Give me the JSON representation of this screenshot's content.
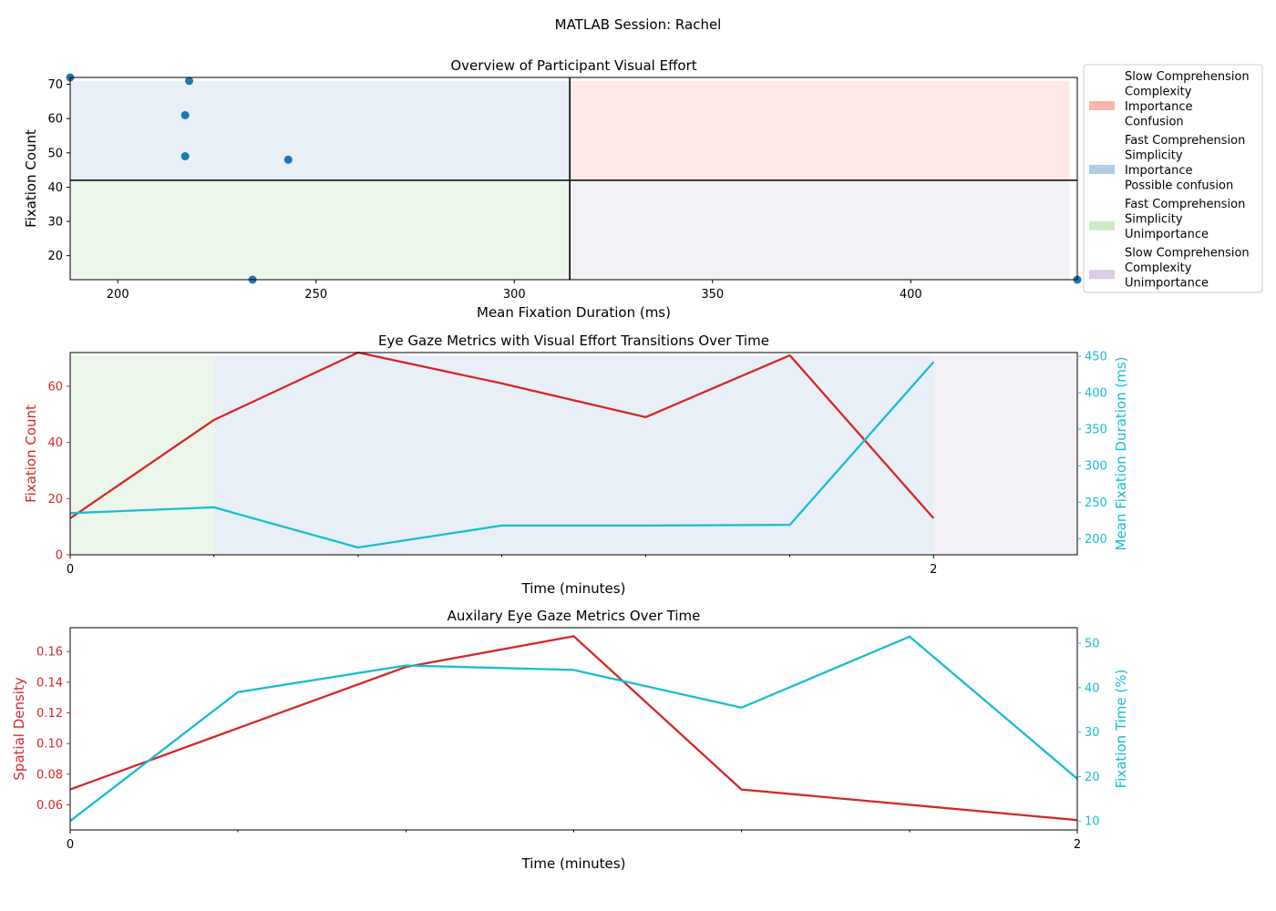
{
  "figure_title": "MATLAB Session: Rachel",
  "colors": {
    "scatter": "#1f77b4",
    "red": "#d62728",
    "cyan": "#17becf",
    "q_slow_complex_confusion": "#fde8e6",
    "q_fast_simple_confusion": "#e8eff7",
    "q_fast_simple_unimportance": "#edf6eb",
    "q_slow_complex_unimportance": "#f3f0f6",
    "legend_slow_complex_confusion": "#f9b6ac",
    "legend_fast_simple_confusion": "#b3cde3",
    "legend_fast_simple_unimportance": "#ccebc5",
    "legend_slow_complex_unimportance": "#decbe4"
  },
  "chart_data": [
    {
      "type": "scatter",
      "title": "Overview of Participant Visual Effort",
      "xlabel": "Mean Fixation Duration (ms)",
      "ylabel": "Fixation Count",
      "xlim": [
        188,
        442
      ],
      "ylim": [
        13,
        72
      ],
      "xticks": [
        200,
        250,
        300,
        350,
        400
      ],
      "yticks": [
        20,
        30,
        40,
        50,
        60,
        70
      ],
      "divider_x": 314,
      "divider_y": 42,
      "quadrants": [
        {
          "key": "q_fast_simple_confusion",
          "x": [
            188,
            314
          ],
          "y": [
            42,
            71
          ]
        },
        {
          "key": "q_slow_complex_confusion",
          "x": [
            314,
            440
          ],
          "y": [
            42,
            71
          ]
        },
        {
          "key": "q_fast_simple_unimportance",
          "x": [
            188,
            314
          ],
          "y": [
            13,
            42
          ]
        },
        {
          "key": "q_slow_complex_unimportance",
          "x": [
            314,
            440
          ],
          "y": [
            13,
            42
          ]
        }
      ],
      "points": [
        {
          "x": 188,
          "y": 72
        },
        {
          "x": 218,
          "y": 71
        },
        {
          "x": 217,
          "y": 61
        },
        {
          "x": 217,
          "y": 49
        },
        {
          "x": 243,
          "y": 48
        },
        {
          "x": 234,
          "y": 13
        },
        {
          "x": 442,
          "y": 13
        }
      ],
      "legend": [
        {
          "lines": [
            "Slow Comprehension",
            "Complexity",
            "Importance",
            "Confusion"
          ],
          "color_key": "legend_slow_complex_confusion"
        },
        {
          "lines": [
            "Fast Comprehension",
            "Simplicity",
            "Importance",
            "Possible confusion"
          ],
          "color_key": "legend_fast_simple_confusion"
        },
        {
          "lines": [
            "Fast Comprehension",
            "Simplicity",
            "Unimportance"
          ],
          "color_key": "legend_fast_simple_unimportance"
        },
        {
          "lines": [
            "Slow Comprehension",
            "Complexity",
            "Unimportance"
          ],
          "color_key": "legend_slow_complex_unimportance"
        }
      ],
      "legend_placement": "outside-right"
    },
    {
      "type": "line",
      "title": "Eye Gaze Metrics with Visual Effort Transitions Over Time",
      "xlabel": "Time (minutes)",
      "xlim": [
        0,
        2.333
      ],
      "xticks": [
        0,
        2
      ],
      "minor_xticks": [
        0.333,
        0.667,
        1.0,
        1.333,
        1.667
      ],
      "x": [
        0,
        0.333,
        0.667,
        1.0,
        1.333,
        1.667,
        2.0
      ],
      "left_axis": {
        "label": "Fixation Count",
        "ylim": [
          0,
          72
        ],
        "yticks": [
          0,
          20,
          40,
          60
        ]
      },
      "right_axis": {
        "label": "Mean Fixation Duration (ms)",
        "ylim": [
          178,
          455
        ],
        "yticks": [
          200,
          250,
          300,
          350,
          400,
          450
        ]
      },
      "series": [
        {
          "axis": "left",
          "color_key": "red",
          "values": [
            13,
            48,
            72,
            61,
            49,
            71,
            13
          ]
        },
        {
          "axis": "right",
          "color_key": "cyan",
          "values": [
            235,
            243,
            188,
            218,
            218,
            219,
            442
          ]
        }
      ],
      "bands": [
        {
          "x": [
            0,
            0.333
          ],
          "key": "q_fast_simple_unimportance",
          "y_top": 71
        },
        {
          "x": [
            0.333,
            2.0
          ],
          "key": "q_fast_simple_confusion",
          "y_top": 71
        },
        {
          "x": [
            2.0,
            2.333
          ],
          "key": "q_slow_complex_unimportance",
          "y_top": 71
        }
      ]
    },
    {
      "type": "line",
      "title": "Auxilary Eye Gaze Metrics Over Time",
      "xlabel": "Time (minutes)",
      "xlim": [
        0,
        2
      ],
      "xticks": [
        0,
        2
      ],
      "minor_xticks": [
        0.333,
        0.667,
        1.0,
        1.333,
        1.667
      ],
      "x": [
        0,
        0.333,
        0.667,
        1.0,
        1.333,
        1.667,
        2.0
      ],
      "left_axis": {
        "label": "Spatial Density",
        "ylim": [
          0.0436,
          0.1756
        ],
        "yticks": [
          0.06,
          0.08,
          0.1,
          0.12,
          0.14,
          0.16
        ],
        "tick_format": 2
      },
      "right_axis": {
        "label": "Fixation Time (%)",
        "ylim": [
          8,
          53.5
        ],
        "yticks": [
          10,
          20,
          30,
          40,
          50
        ]
      },
      "series": [
        {
          "axis": "left",
          "color_key": "red",
          "values": [
            0.07,
            0.11,
            0.15,
            0.17,
            0.07,
            0.06,
            0.05
          ]
        },
        {
          "axis": "right",
          "color_key": "cyan",
          "values": [
            10,
            39,
            45,
            44,
            35.5,
            51.5,
            19.5
          ]
        }
      ]
    }
  ]
}
